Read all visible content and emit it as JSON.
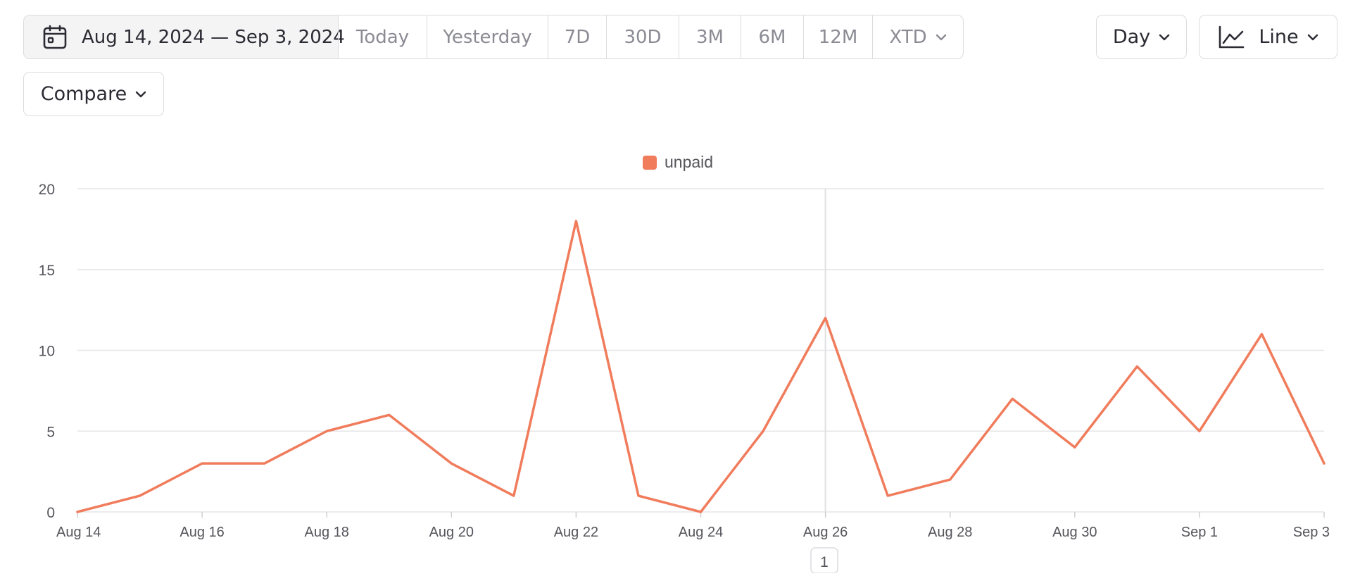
{
  "toolbar": {
    "date_range": "Aug 14, 2024 — Sep 3, 2024",
    "presets": [
      "Today",
      "Yesterday",
      "7D",
      "30D",
      "3M",
      "6M",
      "12M",
      "XTD"
    ],
    "interval": "Day",
    "chart_type": "Line",
    "compare": "Compare"
  },
  "colors": {
    "series": "#f07c5c",
    "grid": "#e6e6e9",
    "axis_text": "#55555c"
  },
  "pagination": {
    "page": "1"
  },
  "chart_data": {
    "type": "line",
    "x": [
      "Aug 14",
      "Aug 15",
      "Aug 16",
      "Aug 17",
      "Aug 18",
      "Aug 19",
      "Aug 20",
      "Aug 21",
      "Aug 22",
      "Aug 23",
      "Aug 24",
      "Aug 25",
      "Aug 26",
      "Aug 27",
      "Aug 28",
      "Aug 29",
      "Aug 30",
      "Aug 31",
      "Sep 1",
      "Sep 2",
      "Sep 3"
    ],
    "x_tick_labels": [
      "Aug 14",
      "Aug 16",
      "Aug 18",
      "Aug 20",
      "Aug 22",
      "Aug 24",
      "Aug 26",
      "Aug 28",
      "Aug 30",
      "Sep 1",
      "Sep 3"
    ],
    "series": [
      {
        "name": "unpaid",
        "values": [
          0,
          1,
          3,
          3,
          5,
          6,
          3,
          1,
          18,
          1,
          0,
          5,
          12,
          1,
          2,
          7,
          4,
          9,
          5,
          11,
          3
        ]
      }
    ],
    "y_ticks": [
      0,
      5,
      10,
      15,
      20
    ],
    "ylim": [
      0,
      20
    ],
    "grid": true,
    "legend": "top-center",
    "hover_x": "Aug 26"
  }
}
